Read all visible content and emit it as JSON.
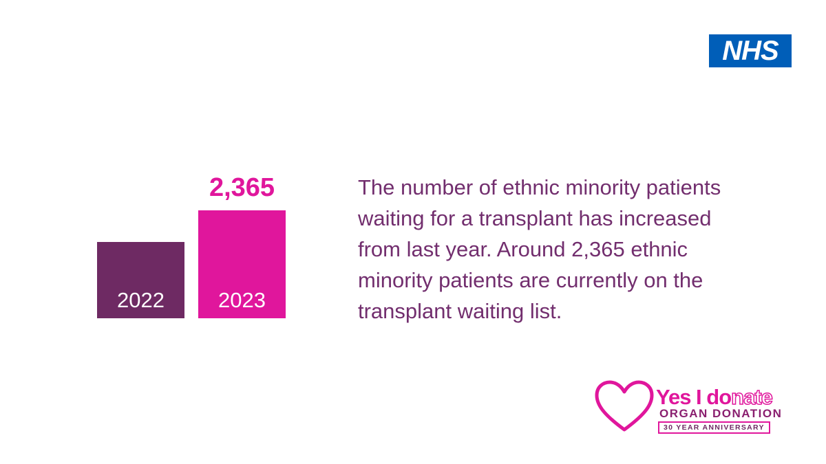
{
  "logo": "NHS",
  "chart_data": {
    "type": "bar",
    "categories": [
      "2022",
      "2023"
    ],
    "values": [
      1672,
      2365
    ],
    "value_labels": [
      null,
      "2,365"
    ],
    "colors": [
      "#6e2a63",
      "#e0169c"
    ]
  },
  "description": "The number of ethnic minority patients waiting for a transplant has increased from last year. Around 2,365 ethnic minority patients are currently on the transplant waiting list.",
  "campaign": {
    "bold": "Yes I do",
    "outline": "nate",
    "subtitle": "ORGAN DONATION",
    "badge": "30 YEAR ANNIVERSARY"
  }
}
